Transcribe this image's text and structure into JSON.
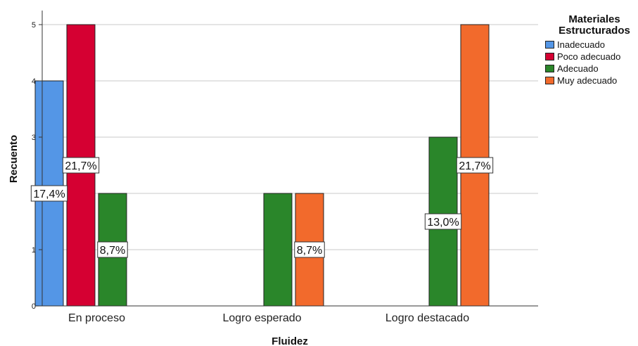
{
  "chart_data": {
    "type": "bar",
    "title": "",
    "xlabel": "Fluidez",
    "ylabel": "Recuento",
    "categories": [
      "En proceso",
      "Logro esperado",
      "Logro destacado"
    ],
    "ylim": [
      0,
      5
    ],
    "yticks": [
      "0",
      "1",
      "2",
      "3",
      "4",
      "5"
    ],
    "grid": true,
    "legend_title": "Materiales Estructurados",
    "legend_position": "top-right",
    "series": [
      {
        "name": "Inadecuado",
        "color": "#5496e6",
        "values": [
          4,
          0,
          0
        ],
        "labels": [
          "17,4%",
          "",
          ""
        ]
      },
      {
        "name": "Poco adecuado",
        "color": "#d50032",
        "values": [
          5,
          0,
          0
        ],
        "labels": [
          "21,7%",
          "",
          ""
        ]
      },
      {
        "name": "Adecuado",
        "color": "#2a862a",
        "values": [
          2,
          2,
          3
        ],
        "labels": [
          "8,7%",
          "",
          "13,0%"
        ]
      },
      {
        "name": "Muy adecuado",
        "color": "#f26a2c",
        "values": [
          0,
          2,
          5
        ],
        "labels": [
          "",
          "8,7%",
          "21,7%"
        ]
      }
    ]
  }
}
